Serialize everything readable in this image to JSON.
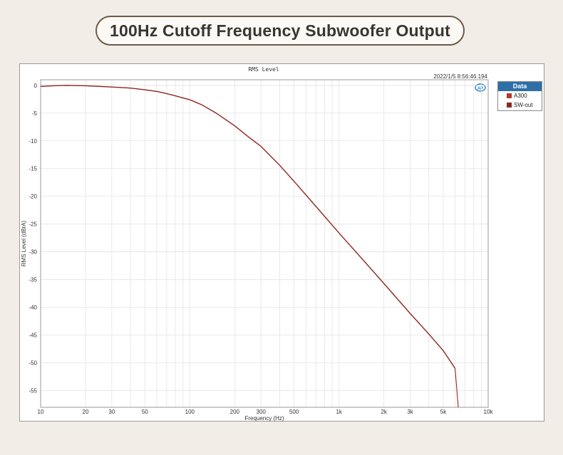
{
  "banner": {
    "title": "100Hz Cutoff Frequency Subwoofer Output"
  },
  "chart_data": {
    "type": "line",
    "title": "RMS Level",
    "timestamp": "2022/1/5 8:56:46.194",
    "xlabel": "Frequency (Hz)",
    "ylabel": "RMS Level (dBrA)",
    "x_scale": "log",
    "xlim": [
      10,
      10000
    ],
    "ylim": [
      -58,
      1
    ],
    "x_ticks": [
      {
        "v": 10,
        "label": "10"
      },
      {
        "v": 20,
        "label": "20"
      },
      {
        "v": 30,
        "label": "30"
      },
      {
        "v": 50,
        "label": "50"
      },
      {
        "v": 100,
        "label": "100"
      },
      {
        "v": 200,
        "label": "200"
      },
      {
        "v": 300,
        "label": "300"
      },
      {
        "v": 500,
        "label": "500"
      },
      {
        "v": 1000,
        "label": "1k"
      },
      {
        "v": 2000,
        "label": "2k"
      },
      {
        "v": 3000,
        "label": "3k"
      },
      {
        "v": 5000,
        "label": "5k"
      },
      {
        "v": 10000,
        "label": "10k"
      }
    ],
    "y_ticks": [
      0,
      -5,
      -10,
      -15,
      -20,
      -25,
      -30,
      -35,
      -40,
      -45,
      -50,
      -55
    ],
    "grid": true,
    "legend": {
      "title": "Data",
      "position": "right"
    },
    "series": [
      {
        "name": "A300",
        "color": "#b03a2e",
        "x": [
          10,
          13,
          15,
          20,
          30,
          40,
          50,
          60,
          70,
          80,
          100,
          120,
          150,
          200,
          250,
          300,
          400,
          500,
          700,
          1000,
          1500,
          2000,
          3000,
          4000,
          5000,
          6000
        ],
        "y": [
          -0.2,
          -0.05,
          -0.02,
          -0.08,
          -0.3,
          -0.5,
          -0.8,
          -1.1,
          -1.5,
          -1.9,
          -2.6,
          -3.5,
          -5.0,
          -7.3,
          -9.4,
          -11.0,
          -14.4,
          -17.3,
          -21.8,
          -26.6,
          -31.9,
          -35.7,
          -41.1,
          -44.8,
          -47.8,
          -51.0
        ]
      },
      {
        "name": "SW-out",
        "color": "#8b2a22",
        "x": [
          10,
          13,
          15,
          20,
          30,
          40,
          50,
          60,
          70,
          80,
          100,
          120,
          150,
          200,
          250,
          300,
          400,
          500,
          700,
          1000,
          1500,
          2000,
          3000,
          4000,
          5000,
          6000,
          6350
        ],
        "y": [
          -0.2,
          -0.05,
          -0.02,
          -0.08,
          -0.3,
          -0.5,
          -0.8,
          -1.1,
          -1.5,
          -1.9,
          -2.6,
          -3.5,
          -5.0,
          -7.3,
          -9.4,
          -11.0,
          -14.4,
          -17.3,
          -21.8,
          -26.6,
          -31.9,
          -35.7,
          -41.1,
          -44.8,
          -47.8,
          -51.0,
          -59.0
        ]
      }
    ]
  }
}
